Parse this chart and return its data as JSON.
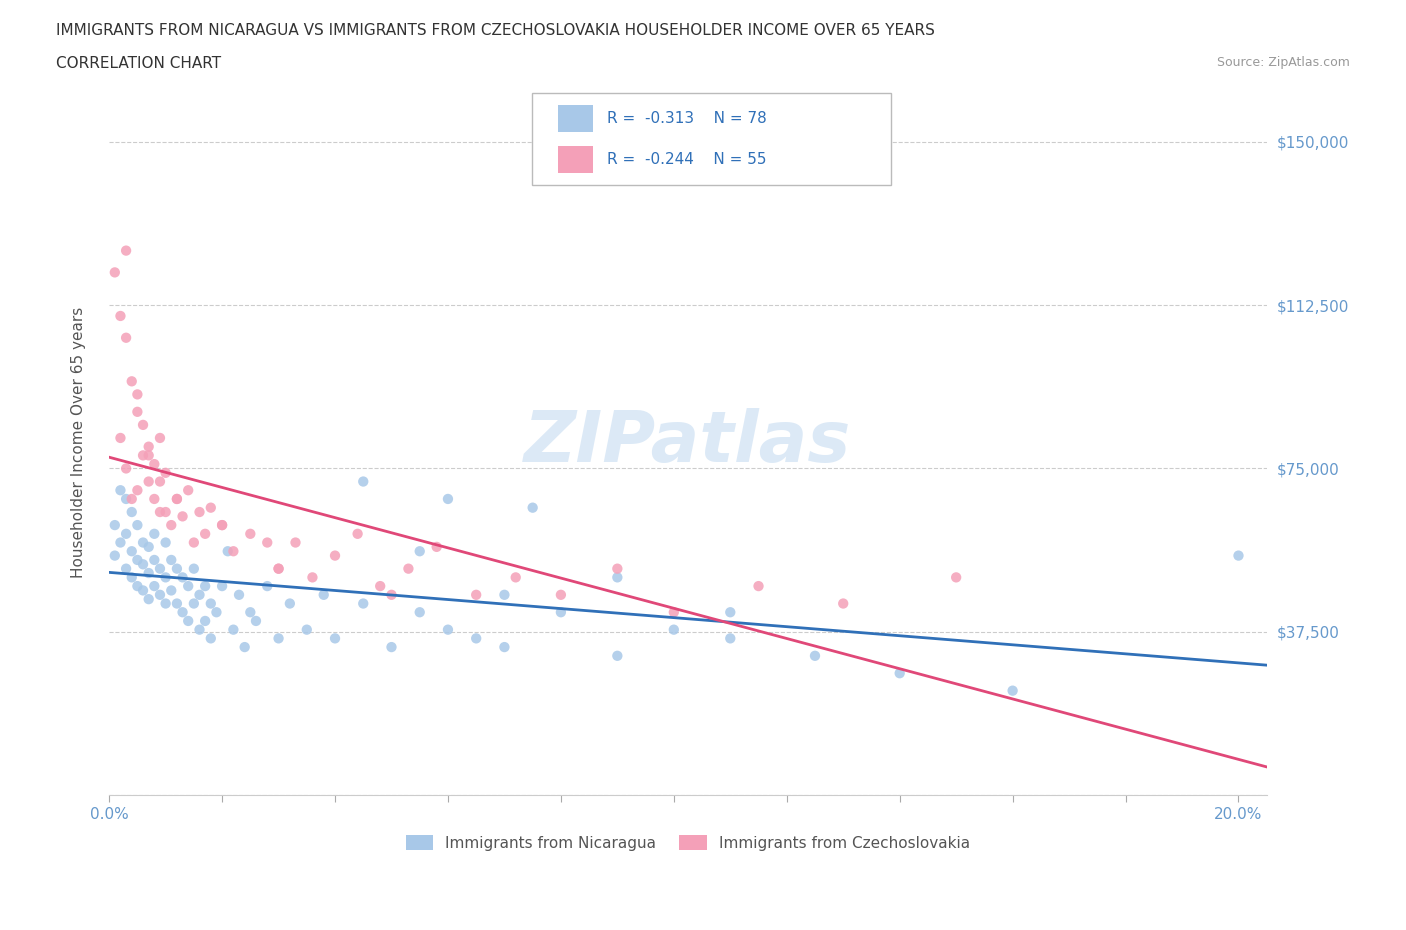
{
  "title_line1": "IMMIGRANTS FROM NICARAGUA VS IMMIGRANTS FROM CZECHOSLOVAKIA HOUSEHOLDER INCOME OVER 65 YEARS",
  "title_line2": "CORRELATION CHART",
  "source_text": "Source: ZipAtlas.com",
  "ylabel": "Householder Income Over 65 years",
  "xlim": [
    0.0,
    0.205
  ],
  "ylim": [
    0,
    162000
  ],
  "ytick_positions": [
    0,
    37500,
    75000,
    112500,
    150000
  ],
  "ytick_labels": [
    "",
    "$37,500",
    "$75,000",
    "$112,500",
    "$150,000"
  ],
  "r_nicaragua": -0.313,
  "n_nicaragua": 78,
  "r_czechoslovakia": -0.244,
  "n_czechoslovakia": 55,
  "color_nicaragua": "#a8c8e8",
  "color_czechoslovakia": "#f4a0b8",
  "line_color_nicaragua": "#3070b8",
  "line_color_czechoslovakia": "#e04878",
  "tick_color": "#6699cc",
  "nicaragua_x": [
    0.001,
    0.001,
    0.002,
    0.002,
    0.003,
    0.003,
    0.003,
    0.004,
    0.004,
    0.004,
    0.005,
    0.005,
    0.005,
    0.006,
    0.006,
    0.006,
    0.007,
    0.007,
    0.007,
    0.008,
    0.008,
    0.008,
    0.009,
    0.009,
    0.01,
    0.01,
    0.01,
    0.011,
    0.011,
    0.012,
    0.012,
    0.013,
    0.013,
    0.014,
    0.014,
    0.015,
    0.015,
    0.016,
    0.016,
    0.017,
    0.017,
    0.018,
    0.018,
    0.019,
    0.02,
    0.021,
    0.022,
    0.023,
    0.024,
    0.025,
    0.026,
    0.028,
    0.03,
    0.032,
    0.035,
    0.038,
    0.04,
    0.045,
    0.05,
    0.055,
    0.06,
    0.065,
    0.07,
    0.08,
    0.09,
    0.1,
    0.11,
    0.125,
    0.14,
    0.16,
    0.06,
    0.07,
    0.09,
    0.11,
    0.045,
    0.055,
    0.075,
    0.2
  ],
  "nicaragua_y": [
    62000,
    55000,
    58000,
    70000,
    52000,
    60000,
    68000,
    50000,
    56000,
    65000,
    48000,
    54000,
    62000,
    47000,
    53000,
    58000,
    45000,
    51000,
    57000,
    48000,
    54000,
    60000,
    46000,
    52000,
    44000,
    50000,
    58000,
    47000,
    54000,
    44000,
    52000,
    42000,
    50000,
    40000,
    48000,
    44000,
    52000,
    38000,
    46000,
    40000,
    48000,
    36000,
    44000,
    42000,
    48000,
    56000,
    38000,
    46000,
    34000,
    42000,
    40000,
    48000,
    36000,
    44000,
    38000,
    46000,
    36000,
    44000,
    34000,
    42000,
    38000,
    36000,
    34000,
    42000,
    32000,
    38000,
    36000,
    32000,
    28000,
    24000,
    68000,
    46000,
    50000,
    42000,
    72000,
    56000,
    66000,
    55000
  ],
  "czechoslovakia_x": [
    0.001,
    0.002,
    0.002,
    0.003,
    0.003,
    0.004,
    0.004,
    0.005,
    0.005,
    0.006,
    0.006,
    0.007,
    0.007,
    0.008,
    0.008,
    0.009,
    0.009,
    0.01,
    0.01,
    0.011,
    0.012,
    0.013,
    0.014,
    0.015,
    0.016,
    0.017,
    0.018,
    0.02,
    0.022,
    0.025,
    0.028,
    0.03,
    0.033,
    0.036,
    0.04,
    0.044,
    0.048,
    0.053,
    0.058,
    0.065,
    0.072,
    0.08,
    0.09,
    0.1,
    0.115,
    0.13,
    0.15,
    0.003,
    0.005,
    0.007,
    0.009,
    0.012,
    0.02,
    0.03,
    0.05
  ],
  "czechoslovakia_y": [
    120000,
    110000,
    82000,
    105000,
    75000,
    95000,
    68000,
    88000,
    70000,
    78000,
    85000,
    72000,
    80000,
    68000,
    76000,
    65000,
    72000,
    65000,
    74000,
    62000,
    68000,
    64000,
    70000,
    58000,
    65000,
    60000,
    66000,
    62000,
    56000,
    60000,
    58000,
    52000,
    58000,
    50000,
    55000,
    60000,
    48000,
    52000,
    57000,
    46000,
    50000,
    46000,
    52000,
    42000,
    48000,
    44000,
    50000,
    125000,
    92000,
    78000,
    82000,
    68000,
    62000,
    52000,
    46000
  ]
}
